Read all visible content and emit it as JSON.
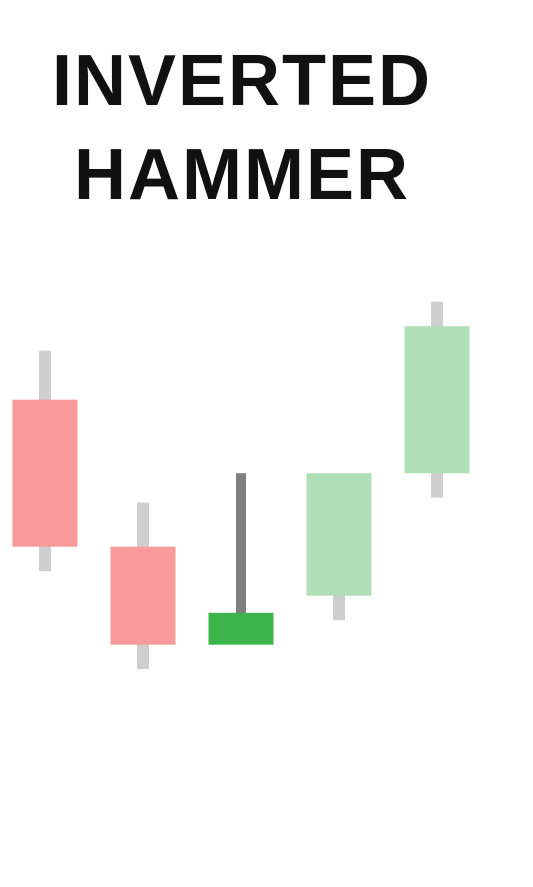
{
  "title": {
    "line1": "INVERTED",
    "line2": "HAMMER"
  },
  "colors": {
    "bearish_body": "#f99a9a",
    "bullish_body_light": "#b0dfb6",
    "hammer_body": "#3bb54a",
    "hammer_wick": "#7f7f7f",
    "wick": "#cfcfcf"
  },
  "chart_data": {
    "type": "candlestick",
    "ylim": [
      0,
      100
    ],
    "candles": [
      {
        "name": "candle-1",
        "kind": "bearish",
        "high": 87,
        "open": 77,
        "close": 47,
        "low": 42
      },
      {
        "name": "candle-2",
        "kind": "bearish",
        "high": 56,
        "open": 47,
        "close": 27,
        "low": 22
      },
      {
        "name": "inverted-hammer",
        "kind": "hammer",
        "high": 62,
        "open": 27,
        "close": 33.5,
        "low": 27
      },
      {
        "name": "candle-4",
        "kind": "bullish",
        "high": 62,
        "open": 37,
        "close": 62,
        "low": 32
      },
      {
        "name": "candle-5",
        "kind": "bullish",
        "high": 97,
        "open": 62,
        "close": 92,
        "low": 57
      }
    ]
  }
}
